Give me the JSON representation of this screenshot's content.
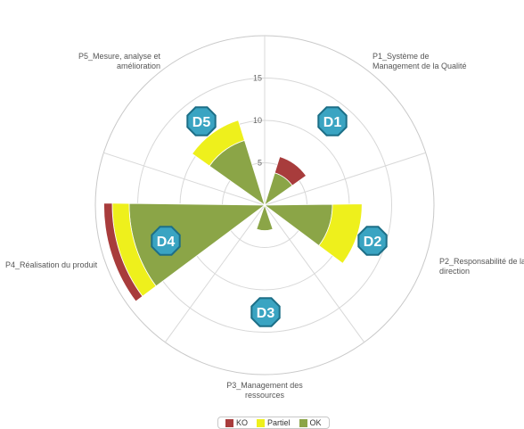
{
  "chart_data": {
    "type": "polar-stacked-column",
    "categories": [
      "P1_Système de\nManagement de la Qualité",
      "P2_Responsabilité de la\ndirection",
      "P3_Management des\nressources",
      "P4_Réalisation du produit",
      "P5_Mesure, analyse et\namélioration"
    ],
    "series": [
      {
        "name": "OK",
        "color": "#8ba547",
        "values": [
          4,
          8,
          3,
          16,
          8
        ]
      },
      {
        "name": "Partiel",
        "color": "#eef01c",
        "values": [
          0,
          3.5,
          0,
          2,
          2.5
        ]
      },
      {
        "name": "KO",
        "color": "#a83c3c",
        "values": [
          2,
          0,
          0,
          1,
          0
        ]
      }
    ],
    "radial_ticks": [
      5,
      10,
      15
    ],
    "r_max": 20,
    "badges": [
      "D1",
      "D2",
      "D3",
      "D4",
      "D5"
    ],
    "badge_color": "#3aa4c2"
  }
}
